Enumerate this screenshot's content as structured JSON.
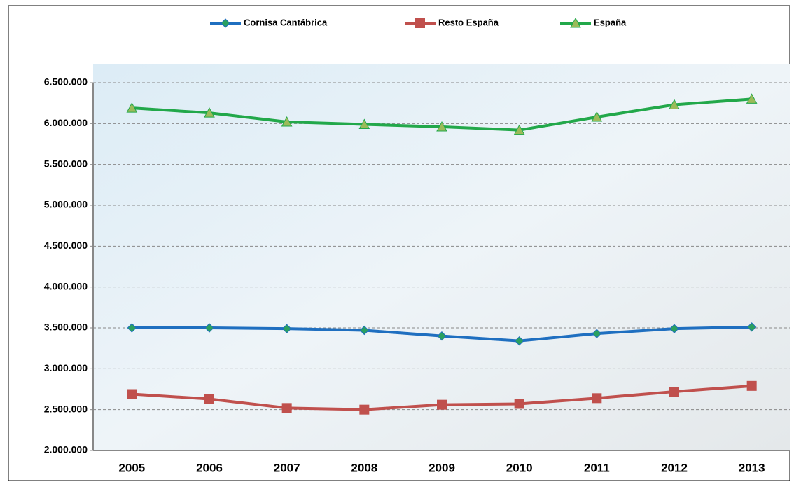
{
  "chart_data": {
    "type": "line",
    "categories": [
      "2005",
      "2006",
      "2007",
      "2008",
      "2009",
      "2010",
      "2011",
      "2012",
      "2013"
    ],
    "series": [
      {
        "name": "Cornisa Cantábrica",
        "color": "#1f6fc0",
        "values": [
          3500000,
          3500000,
          3490000,
          3470000,
          3400000,
          3340000,
          3430000,
          3490000,
          3510000
        ]
      },
      {
        "name": "Resto España",
        "color": "#c0504d",
        "values": [
          2690000,
          2630000,
          2520000,
          2500000,
          2560000,
          2570000,
          2640000,
          2720000,
          2790000
        ]
      },
      {
        "name": "España",
        "color": "#22a84a",
        "values": [
          6190000,
          6130000,
          6020000,
          5990000,
          5960000,
          5920000,
          6080000,
          6230000,
          6300000
        ]
      }
    ],
    "ylim": [
      2000000,
      6500000
    ],
    "yticks": [
      {
        "value": 2000000,
        "label": "2.000.000"
      },
      {
        "value": 2500000,
        "label": "2.500.000"
      },
      {
        "value": 3000000,
        "label": "3.000.000"
      },
      {
        "value": 3500000,
        "label": "3.500.000"
      },
      {
        "value": 4000000,
        "label": "4.000.000"
      },
      {
        "value": 4500000,
        "label": "4.500.000"
      },
      {
        "value": 5000000,
        "label": "5.000.000"
      },
      {
        "value": 5500000,
        "label": "5.500.000"
      },
      {
        "value": 6000000,
        "label": "6.000.000"
      },
      {
        "value": 6500000,
        "label": "6.500.000"
      }
    ],
    "grid": true,
    "legend": "top"
  }
}
